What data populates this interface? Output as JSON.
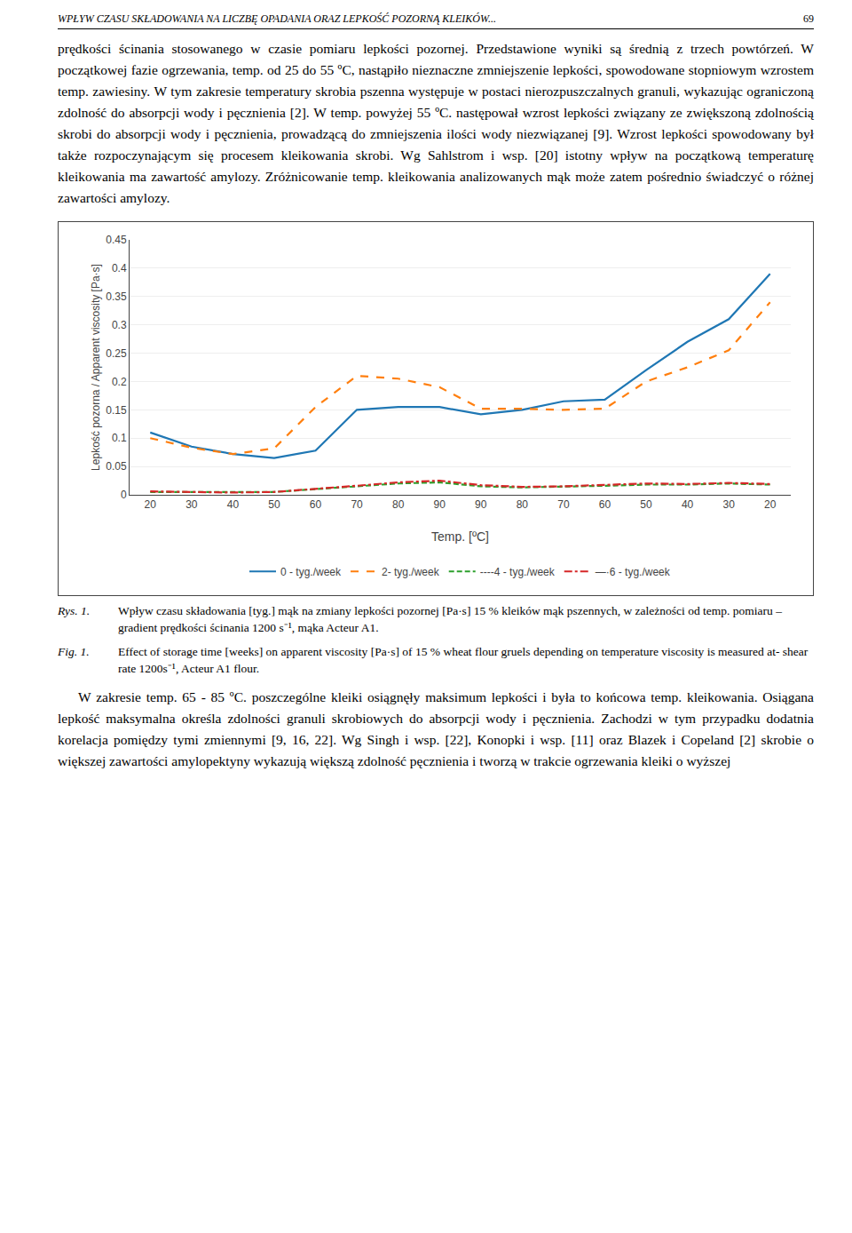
{
  "chart_data": {
    "type": "line",
    "x_label": "Temp. [ºC]",
    "y_label": "Lepkość pozorna / Apparent viscosity [Pa·s]",
    "categories": [
      "20",
      "30",
      "40",
      "50",
      "60",
      "70",
      "80",
      "90",
      "90",
      "80",
      "70",
      "60",
      "50",
      "40",
      "30",
      "20"
    ],
    "series": [
      {
        "name": "0 - tyg./week",
        "line_style": "solid",
        "values": [
          0.11,
          0.085,
          0.072,
          0.065,
          0.078,
          0.15,
          0.155,
          0.155,
          0.142,
          0.15,
          0.165,
          0.168,
          0.22,
          0.27,
          0.31,
          0.39
        ]
      },
      {
        "name": "2- tyg./week",
        "line_style": "dashed",
        "values": [
          0.1,
          0.083,
          0.072,
          0.082,
          0.155,
          0.21,
          0.205,
          0.19,
          0.152,
          0.152,
          0.15,
          0.152,
          0.2,
          0.225,
          0.255,
          0.34
        ]
      },
      {
        "name": "----4 - tyg./week",
        "line_style": "densedash",
        "values": [
          0.005,
          0.005,
          0.004,
          0.005,
          0.01,
          0.015,
          0.02,
          0.022,
          0.015,
          0.013,
          0.014,
          0.016,
          0.018,
          0.018,
          0.02,
          0.018
        ]
      },
      {
        "name": "—·6 - tyg./week",
        "line_style": "dashdot",
        "values": [
          0.006,
          0.005,
          0.004,
          0.005,
          0.01,
          0.016,
          0.022,
          0.025,
          0.017,
          0.014,
          0.015,
          0.017,
          0.02,
          0.019,
          0.021,
          0.019
        ]
      }
    ],
    "ylim": [
      0,
      0.45
    ],
    "yticks": [
      0,
      0.05,
      0.1,
      0.15,
      0.2,
      0.25,
      0.3,
      0.35,
      0.4,
      0.45
    ],
    "grid": "y",
    "legend": "bottom"
  },
  "page_text": {
    "header_left": "WPŁYW CZASU SKŁADOWANIA NA LICZBĘ OPADANIA ORAZ LEPKOŚĆ POZORNĄ KLEIKÓW...",
    "header_right": "69",
    "text_above": "prędkości ścinania stosowanego w czasie pomiaru lepkości pozornej. Przedstawione wyniki są średnią z trzech powtórzeń. W początkowej fazie ogrzewania, temp. od 25 do 55 ºC, nastąpiło nieznaczne zmniejszenie lepkości, spowodowane stopniowym wzrostem temp. zawiesiny. W tym zakresie temperatury skrobia pszenna występuje w postaci nierozpuszczalnych granuli, wykazując ograniczoną zdolność do absorpcji wody i pęcznienia [2]. W temp. powyżej 55 ºC. następował wzrost lepkości związany ze zwiększoną zdolnością skrobi do absorpcji wody i pęcznienia, prowadzącą do zmniejszenia ilości wody niezwiązanej [9]. Wzrost lepkości spowodowany był także rozpoczynającym się procesem kleikowania skrobi. Wg Sahlstrom i wsp. [20] istotny wpływ na początkową temperaturę kleikowania ma zawartość amylozy. Zróżnicowanie temp. kleikowania analizowanych mąk może zatem pośrednio świadczyć o różnej zawartości amylozy.",
    "caption_rys_label": "Rys. 1.",
    "caption_rys_text": "Wpływ czasu składowania [tyg.] mąk na zmiany lepkości pozornej [Pa·s] 15 % kleików mąk pszennych, w zależności od temp. pomiaru – gradient prędkości ścinania 1200 s⁻¹, mąka Acteur A1.",
    "caption_fig_label": "Fig. 1.",
    "caption_fig_text": "Effect of storage time [weeks] on apparent viscosity [Pa·s] of 15 % wheat flour gruels depending on temperature viscosity is measured at- shear rate 1200s⁻¹, Acteur A1 flour.",
    "text_below": "    W zakresie temp. 65 - 85 ºC. poszczególne kleiki osiągnęły maksimum lepkości i była to końcowa temp. kleikowania. Osiągana lepkość maksymalna określa zdolności granuli skrobiowych do absorpcji wody i pęcznienia. Zachodzi w tym przypadku dodatnia korelacja pomiędzy tymi zmiennymi [9, 16, 22]. Wg Singh i wsp. [22], Konopki i wsp. [11] oraz Blazek i Copeland [2] skrobie o większej zawartości amylopektyny wykazują większą zdolność pęcznienia i tworzą w trakcie ogrzewania kleiki o wyższej"
  }
}
